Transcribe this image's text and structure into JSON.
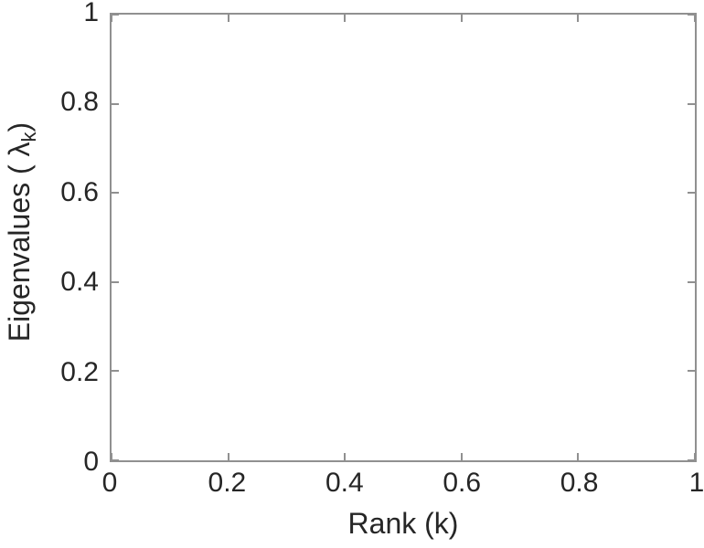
{
  "chart_data": {
    "type": "line",
    "title": "",
    "xlabel": "Rank (k)",
    "ylabel": "Eigenvalues ( λ_k)",
    "ylabel_parts": {
      "prefix": "Eigenvalues ( ",
      "symbol": "λ",
      "subscript": "k",
      "suffix": ")"
    },
    "x_ticks": [
      {
        "value": 0,
        "label": "0"
      },
      {
        "value": 0.2,
        "label": "0.2"
      },
      {
        "value": 0.4,
        "label": "0.4"
      },
      {
        "value": 0.6,
        "label": "0.6"
      },
      {
        "value": 0.8,
        "label": "0.8"
      },
      {
        "value": 1,
        "label": "1"
      }
    ],
    "y_ticks": [
      {
        "value": 0,
        "label": "0"
      },
      {
        "value": 0.2,
        "label": "0.2"
      },
      {
        "value": 0.4,
        "label": "0.4"
      },
      {
        "value": 0.6,
        "label": "0.6"
      },
      {
        "value": 0.8,
        "label": "0.8"
      },
      {
        "value": 1,
        "label": "1"
      }
    ],
    "xlim": [
      0,
      1
    ],
    "ylim": [
      0,
      1
    ],
    "series": [],
    "grid": false,
    "box": true,
    "legend": null
  },
  "colors": {
    "background": "#ffffff",
    "axis_line": "#909090",
    "text": "#262626"
  }
}
